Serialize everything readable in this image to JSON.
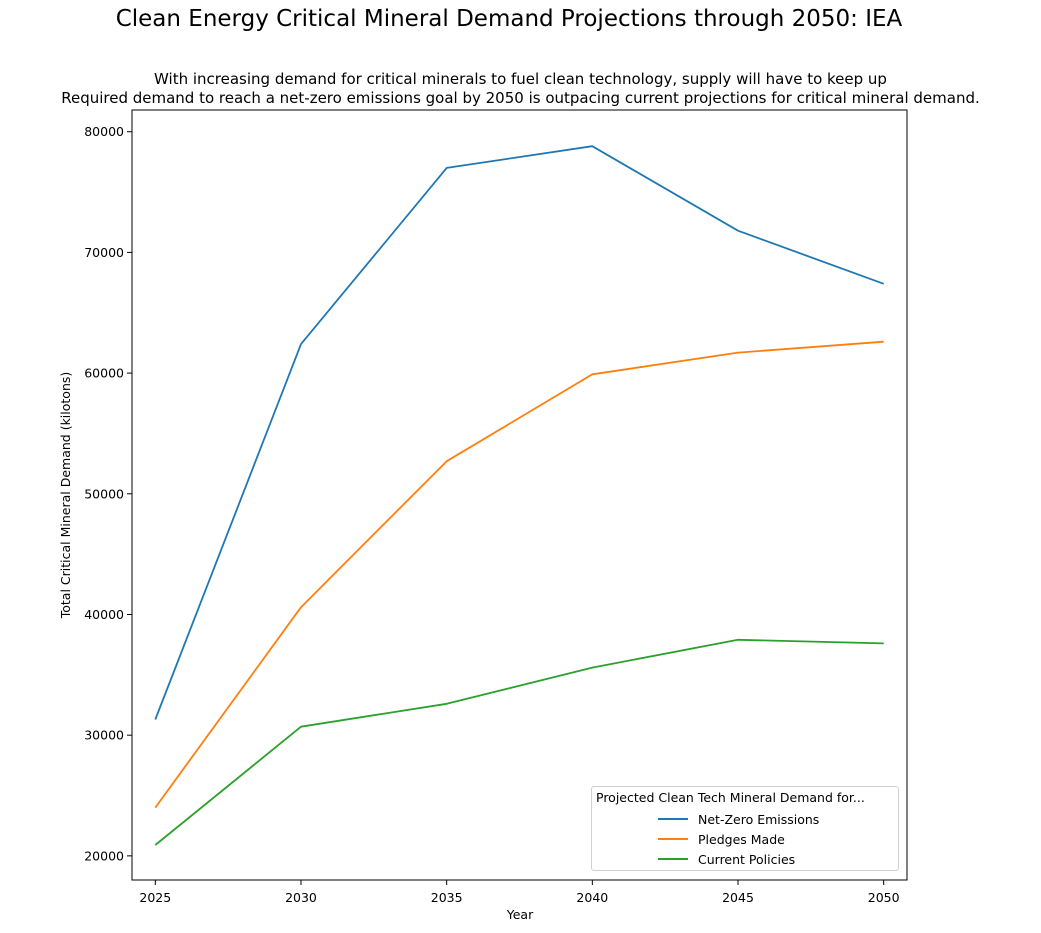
{
  "title": "Clean Energy Critical Mineral Demand Projections through 2050: IEA",
  "subtitle_line1": "With increasing demand for critical minerals to fuel clean technology, supply will have to keep up",
  "subtitle_line2": "Required demand to reach a net-zero emissions goal by 2050 is outpacing current projections for critical mineral demand.",
  "chart_data": {
    "type": "line",
    "x": [
      2025,
      2030,
      2035,
      2040,
      2045,
      2050
    ],
    "series": [
      {
        "name": "Net-Zero Emissions",
        "color": "#1f77b4",
        "values": [
          31300,
          62400,
          77000,
          78800,
          71800,
          67400
        ]
      },
      {
        "name": "Pledges Made",
        "color": "#ff7f0e",
        "values": [
          24000,
          40600,
          52700,
          59900,
          61700,
          62600
        ]
      },
      {
        "name": "Current Policies",
        "color": "#2ca02c",
        "values": [
          20900,
          30700,
          32600,
          35600,
          37900,
          37600
        ]
      }
    ],
    "xlabel": "Year",
    "ylabel": "Total Critical Mineral Demand (kilotons)",
    "xticks": [
      2025,
      2030,
      2035,
      2040,
      2045,
      2050
    ],
    "yticks": [
      20000,
      30000,
      40000,
      50000,
      60000,
      70000,
      80000
    ],
    "xlim": [
      2024.2,
      2050.8
    ],
    "ylim": [
      18000,
      81800
    ],
    "grid": false,
    "legend_title": "Projected Clean Tech Mineral Demand for...",
    "legend_position": "lower-right"
  }
}
